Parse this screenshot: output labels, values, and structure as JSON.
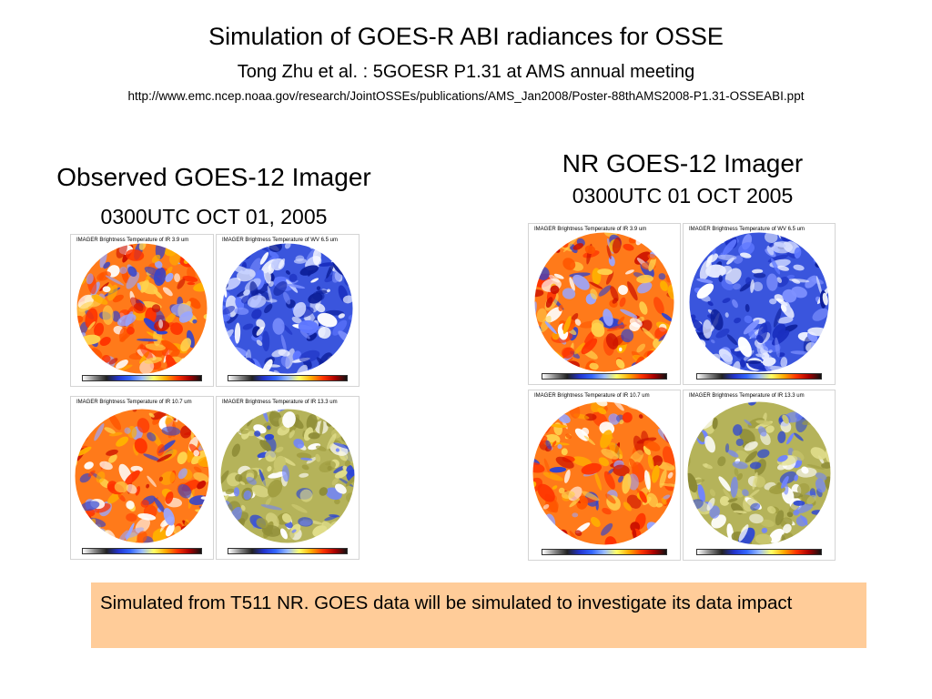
{
  "header": {
    "title": "Simulation of GOES-R ABI radiances for OSSE",
    "subtitle": "Tong Zhu et al. : 5GOESR P1.31 at AMS annual meeting",
    "url": "http://www.emc.ncep.noaa.gov/research/JointOSSEs/publications/AMS_Jan2008/Poster-88thAMS2008-P1.31-OSSEABI.ppt"
  },
  "panels": [
    {
      "heading": "Observed GOES-12 Imager",
      "time": "0300UTC OCT 01, 2005",
      "images": [
        {
          "label": "IMAGER Brightness Temperature of IR 3.9 um",
          "colormap": "warm",
          "channel": "IR 3.9 um"
        },
        {
          "label": "IMAGER Brightness Temperature of WV 6.5 um",
          "colormap": "blue",
          "channel": "WV 6.5 um"
        },
        {
          "label": "IMAGER Brightness Temperature of IR 10.7 um",
          "colormap": "warm",
          "channel": "IR 10.7 um"
        },
        {
          "label": "IMAGER Brightness Temperature of IR 13.3 um",
          "colormap": "olive",
          "channel": "IR 13.3 um"
        }
      ]
    },
    {
      "heading": "NR GOES-12 Imager",
      "time": "0300UTC 01 OCT 2005",
      "images": [
        {
          "label": "IMAGER Brightness Temperature of IR 3.9 um",
          "colormap": "warm",
          "channel": "IR 3.9 um"
        },
        {
          "label": "IMAGER Brightness Temperature of WV 6.5 um",
          "colormap": "blue",
          "channel": "WV 6.5 um"
        },
        {
          "label": "IMAGER Brightness Temperature of IR 10.7 um",
          "colormap": "warm",
          "channel": "IR 10.7 um"
        },
        {
          "label": "IMAGER Brightness Temperature of IR 13.3 um",
          "colormap": "olive",
          "channel": "IR 13.3 um"
        }
      ]
    }
  ],
  "note": {
    "text": "Simulated from T511 NR.  GOES data will be simulated to investigate its data impact",
    "background": "#ffcc99"
  },
  "colorbar_colors": [
    "#ffffff",
    "#888888",
    "#222222",
    "#2233cc",
    "#3366ff",
    "#99bbff",
    "#ffff66",
    "#ffaa00",
    "#ff3300",
    "#aa0000",
    "#111111"
  ]
}
